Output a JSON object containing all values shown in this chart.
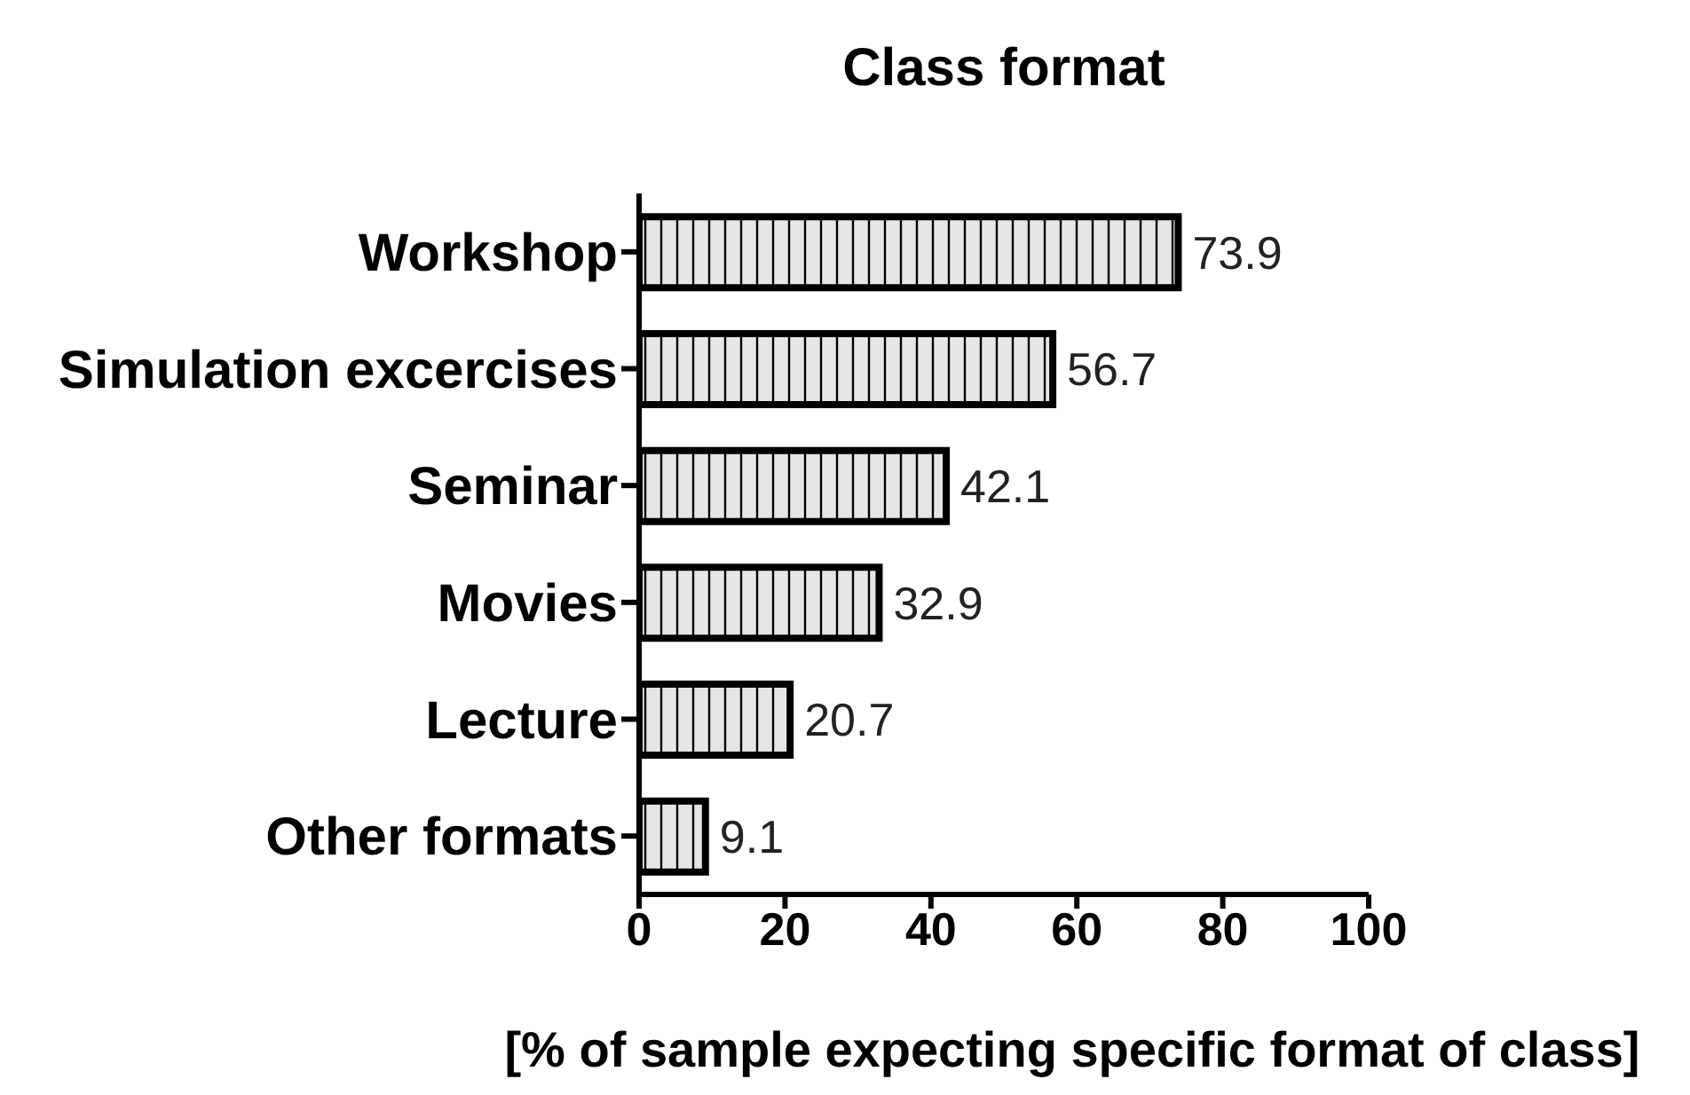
{
  "chart_data": {
    "type": "bar",
    "orientation": "horizontal",
    "title": "Class format",
    "xlabel": "[% of sample expecting specific format of class]",
    "categories": [
      "Workshop",
      "Simulation excercises",
      "Seminar",
      "Movies",
      "Lecture",
      "Other formats"
    ],
    "values": [
      73.9,
      56.7,
      42.1,
      32.9,
      20.7,
      9.1
    ],
    "color": "#000000",
    "xlim": [
      0,
      100
    ],
    "xticks": [
      0,
      20,
      40,
      60,
      80,
      100
    ],
    "data_labels": true,
    "grid": false,
    "legend": false
  }
}
